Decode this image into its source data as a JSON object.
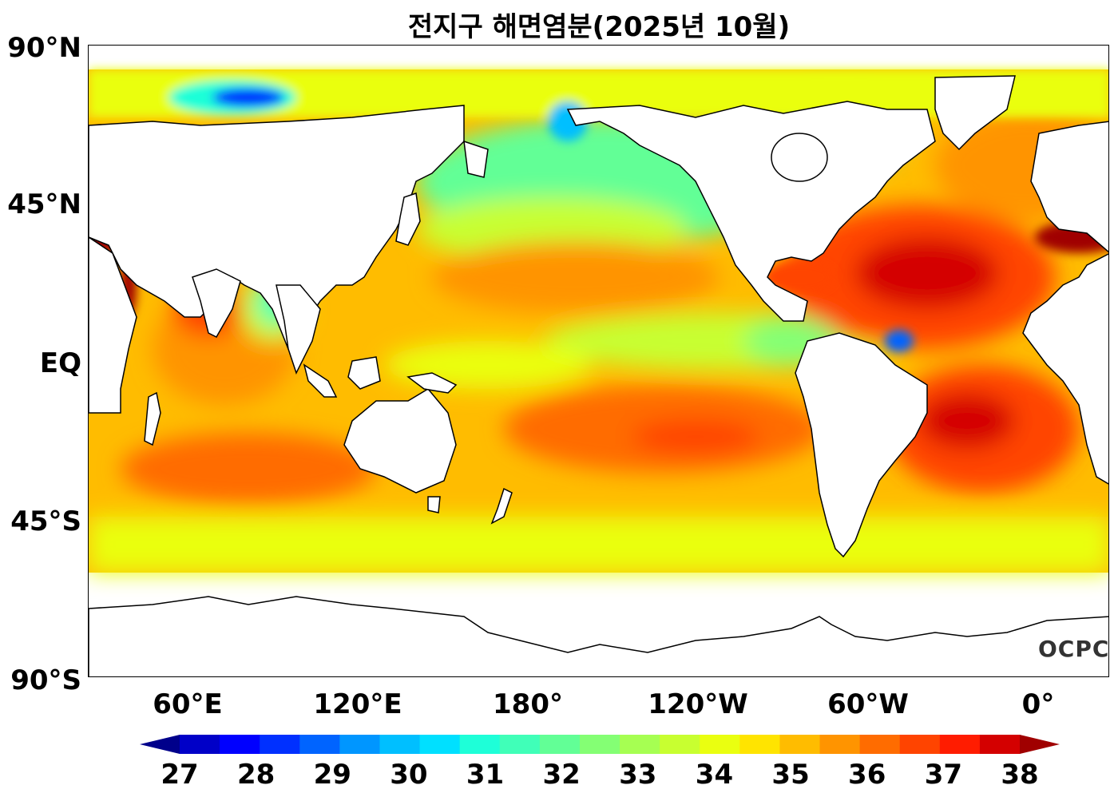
{
  "title": "전지구 해면염분(2025년 10월)",
  "lat_labels": [
    "90°N",
    "45°N",
    "EQ",
    "45°S",
    "90°S"
  ],
  "lon_labels": [
    "60°E",
    "120°E",
    "180°",
    "120°W",
    "60°W",
    "0°"
  ],
  "logo_text": "OCPC",
  "colorbar": {
    "ticks": [
      "27",
      "28",
      "29",
      "30",
      "31",
      "32",
      "33",
      "34",
      "35",
      "36",
      "37",
      "38"
    ],
    "min": 27,
    "max": 38,
    "step": 0.5,
    "extend": "both",
    "colors": [
      "#00008b",
      "#0000c8",
      "#0000ff",
      "#0030ff",
      "#0064ff",
      "#0096ff",
      "#00bfff",
      "#00e0ff",
      "#1effd8",
      "#40ffb8",
      "#62ff96",
      "#84ff74",
      "#a6ff52",
      "#c8ff30",
      "#eaff10",
      "#ffe400",
      "#ffbc00",
      "#ff9400",
      "#ff6c00",
      "#ff4400",
      "#ff1c00",
      "#d40000",
      "#a00000"
    ]
  },
  "colors": {
    "land": "#ffffff",
    "coast": "#000000",
    "pacific_subtropics": "#ff9400",
    "atlantic_subtropics": "#d40000",
    "arctic": "#0030ff",
    "southern_ocean": "#eaff10"
  }
}
